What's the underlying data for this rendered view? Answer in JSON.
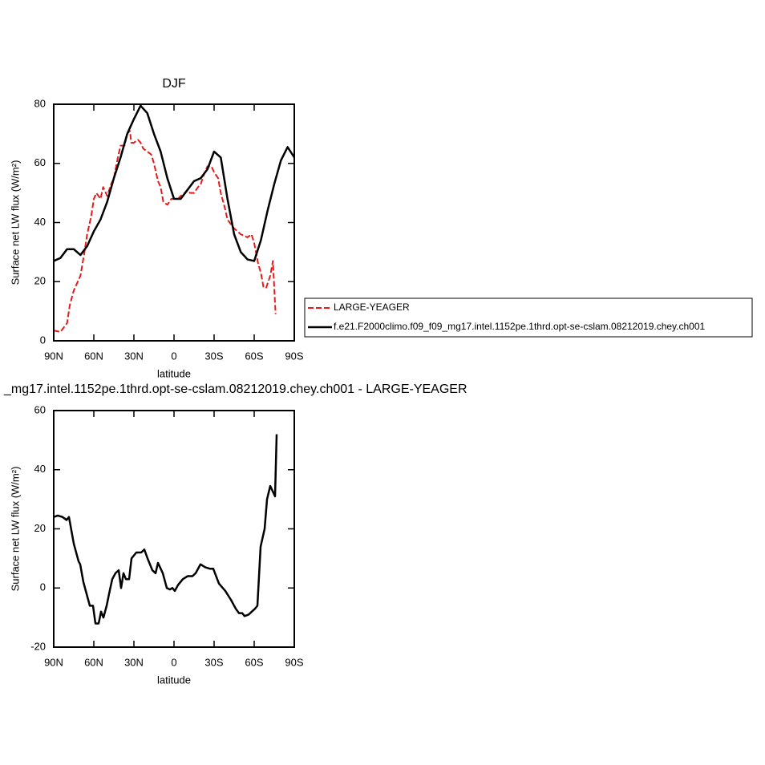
{
  "chart_data": [
    {
      "type": "line",
      "title": "DJF",
      "xlabel": "latitude",
      "ylabel": "Surface net LW flux (W/m²)",
      "xlim": [
        90,
        -90
      ],
      "xticks": [
        {
          "value": 90,
          "label": "90N"
        },
        {
          "value": 60,
          "label": "60N"
        },
        {
          "value": 30,
          "label": "30N"
        },
        {
          "value": 0,
          "label": "0"
        },
        {
          "value": -30,
          "label": "30S"
        },
        {
          "value": -60,
          "label": "60S"
        },
        {
          "value": -90,
          "label": "90S"
        }
      ],
      "ylim": [
        0,
        80
      ],
      "yticks": [
        0,
        20,
        40,
        60,
        80
      ],
      "legend": "right",
      "series": [
        {
          "name": "LARGE-YEAGER",
          "color": "#e41a1c",
          "dash": true,
          "x": [
            90,
            85,
            80,
            78,
            75,
            70,
            67,
            65,
            62,
            60,
            58,
            55,
            53,
            50,
            47,
            45,
            42,
            40,
            37,
            35,
            33,
            32,
            30,
            27,
            25,
            23,
            20,
            17,
            15,
            12,
            10,
            8,
            5,
            2,
            0,
            -3,
            -5,
            -8,
            -10,
            -12,
            -15,
            -18,
            -20,
            -23,
            -25,
            -28,
            -30,
            -33,
            -35,
            -38,
            -40,
            -45,
            -50,
            -55,
            -58,
            -60,
            -63,
            -65,
            -67,
            -69,
            -72,
            -74,
            -76
          ],
          "values": [
            3.5,
            3,
            6,
            12,
            17,
            22,
            30,
            36,
            42,
            48,
            50,
            48,
            52,
            49,
            53,
            55,
            62,
            66,
            66,
            70,
            71,
            67,
            67,
            68,
            67,
            65,
            64,
            63,
            60,
            54,
            52,
            47,
            46,
            48,
            48,
            48,
            49,
            50,
            51,
            50,
            50,
            52,
            53,
            57,
            59,
            59,
            57,
            55,
            50,
            45,
            41,
            38,
            36,
            35,
            36,
            33,
            26,
            23,
            18,
            18,
            22,
            27,
            9
          ]
        },
        {
          "name": "f.e21.F2000climo.f09_f09_mg17.intel.1152pe.1thrd.opt-se-cslam.08212019.chey.ch001",
          "color": "#000000",
          "dash": false,
          "x": [
            90,
            85,
            80,
            75,
            70,
            65,
            60,
            55,
            50,
            45,
            40,
            35,
            30,
            25,
            20,
            15,
            10,
            5,
            0,
            -5,
            -10,
            -15,
            -20,
            -25,
            -30,
            -35,
            -40,
            -45,
            -50,
            -55,
            -60,
            -65,
            -70,
            -75,
            -80,
            -85,
            -90
          ],
          "values": [
            27,
            28,
            31,
            31,
            29,
            32,
            37,
            41,
            47,
            55,
            62,
            70,
            75,
            79.5,
            77,
            70,
            64,
            55,
            48,
            48,
            51,
            54,
            55,
            58,
            64,
            62,
            48,
            36,
            30,
            27.5,
            27,
            34,
            44,
            53,
            61,
            65.5,
            62
          ]
        }
      ]
    },
    {
      "type": "line",
      "title": "_mg17.intel.1152pe.1thrd.opt-se-cslam.08212019.chey.ch001 - LARGE-YEAGER",
      "xlabel": "latitude",
      "ylabel": "Surface net LW flux (W/m²)",
      "xlim": [
        90,
        -90
      ],
      "xticks": [
        {
          "value": 90,
          "label": "90N"
        },
        {
          "value": 60,
          "label": "60N"
        },
        {
          "value": 30,
          "label": "30N"
        },
        {
          "value": 0,
          "label": "0"
        },
        {
          "value": -30,
          "label": "30S"
        },
        {
          "value": -60,
          "label": "60S"
        },
        {
          "value": -90,
          "label": "90S"
        }
      ],
      "ylim": [
        -20,
        60
      ],
      "yticks": [
        -20,
        0,
        20,
        40,
        60
      ],
      "series": [
        {
          "color": "#000000",
          "dash": false,
          "x": [
            90,
            87,
            83.4,
            80.4,
            78.6,
            75,
            71.4,
            70.2,
            67.8,
            65.4,
            63,
            60.6,
            58.8,
            56.4,
            54.6,
            52.8,
            50.4,
            48.6,
            46.2,
            43.8,
            41.4,
            39.6,
            37.8,
            36,
            33.6,
            31.8,
            28.2,
            24.6,
            22.2,
            19.8,
            16.2,
            13.8,
            12,
            8.4,
            5.4,
            3,
            1.2,
            -0.6,
            -3,
            -6.6,
            -10.2,
            -13.8,
            -16.2,
            -19.8,
            -23.4,
            -27,
            -29.4,
            -33.6,
            -38.4,
            -42.6,
            -46.2,
            -48.6,
            -51,
            -52.8,
            -55.8,
            -60.6,
            -62.4,
            -64.8,
            -67.8,
            -69.6,
            -72,
            -75.6,
            -76.8
          ],
          "values": [
            24,
            24.5,
            24,
            23,
            24,
            15,
            9,
            8,
            2,
            -2,
            -6,
            -6,
            -12,
            -12,
            -8,
            -10,
            -6,
            -2,
            3,
            5,
            6,
            0,
            5,
            3,
            3,
            10,
            12,
            12,
            13,
            10,
            6,
            5,
            8.5,
            5,
            0,
            -0.5,
            0,
            -1,
            1,
            3,
            4,
            4,
            5,
            8,
            7,
            6.5,
            6.5,
            1.5,
            -1,
            -4,
            -7,
            -8.5,
            -8.5,
            -9.5,
            -9,
            -7,
            -6,
            14,
            20,
            30,
            34.5,
            31,
            52
          ]
        }
      ]
    }
  ]
}
